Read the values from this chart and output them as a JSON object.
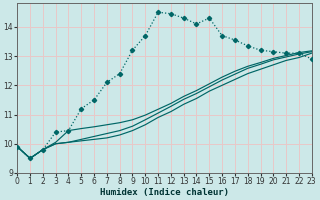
{
  "title": "",
  "xlabel": "Humidex (Indice chaleur)",
  "ylabel": "",
  "bg_color": "#cce8e8",
  "grid_color": "#e8c8c8",
  "line_color": "#006666",
  "x_ticks": [
    0,
    1,
    2,
    3,
    4,
    5,
    6,
    7,
    8,
    9,
    10,
    11,
    12,
    13,
    14,
    15,
    16,
    17,
    18,
    19,
    20,
    21,
    22,
    23
  ],
  "y_ticks": [
    9,
    10,
    11,
    12,
    13,
    14
  ],
  "xlim": [
    0,
    23
  ],
  "ylim": [
    9.0,
    14.8
  ],
  "series_peaked": [
    9.9,
    9.5,
    9.8,
    10.4,
    10.45,
    11.2,
    11.5,
    12.1,
    12.4,
    13.2,
    13.7,
    14.5,
    14.45,
    14.3,
    14.1,
    14.3,
    13.7,
    13.55,
    13.35,
    13.2,
    13.15,
    13.1,
    13.1,
    12.9
  ],
  "series_linear": [
    [
      9.9,
      9.5,
      9.8,
      10.0,
      10.05,
      10.1,
      10.15,
      10.2,
      10.3,
      10.45,
      10.65,
      10.9,
      11.1,
      11.35,
      11.55,
      11.8,
      12.0,
      12.2,
      12.4,
      12.55,
      12.7,
      12.85,
      12.95,
      13.1
    ],
    [
      9.9,
      9.5,
      9.8,
      10.0,
      10.05,
      10.15,
      10.25,
      10.35,
      10.45,
      10.6,
      10.82,
      11.05,
      11.28,
      11.52,
      11.72,
      11.95,
      12.18,
      12.38,
      12.58,
      12.72,
      12.87,
      12.97,
      13.07,
      13.15
    ],
    [
      9.9,
      9.5,
      9.8,
      10.05,
      10.45,
      10.52,
      10.58,
      10.65,
      10.72,
      10.82,
      10.98,
      11.18,
      11.38,
      11.62,
      11.82,
      12.05,
      12.28,
      12.48,
      12.65,
      12.78,
      12.92,
      13.02,
      13.12,
      13.18
    ]
  ]
}
